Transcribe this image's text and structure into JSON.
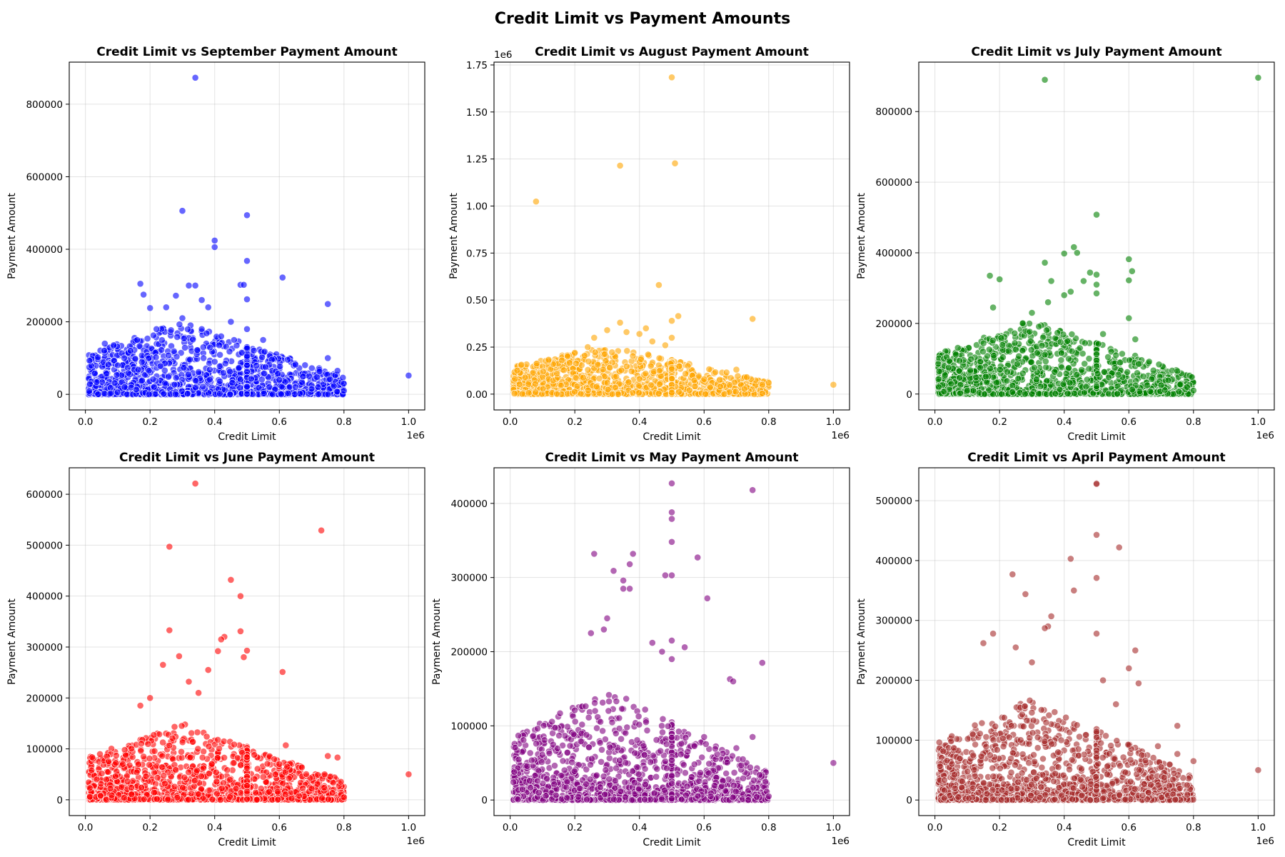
{
  "figure": {
    "title": "Credit Limit vs Payment Amounts"
  },
  "chart_data": [
    {
      "type": "scatter",
      "title": "Credit Limit vs September Payment Amount",
      "xlabel": "Credit Limit",
      "ylabel": "Payment Amount",
      "color": "#0000ff",
      "x_offset_label": "1e6",
      "y_offset_label": "",
      "xlim": [
        -50000,
        1050000
      ],
      "ylim": [
        -43000,
        916000
      ],
      "xticks": [
        0,
        200000,
        400000,
        600000,
        800000,
        1000000
      ],
      "xtick_labels": [
        "0.0",
        "0.2",
        "0.4",
        "0.6",
        "0.8",
        "1.0"
      ],
      "yticks": [
        0,
        200000,
        400000,
        600000,
        800000
      ],
      "ytick_labels": [
        "0",
        "200000",
        "400000",
        "600000",
        "800000"
      ],
      "grid": true,
      "points": [
        [
          340000,
          873000
        ],
        [
          300000,
          506000
        ],
        [
          500000,
          494000
        ],
        [
          400000,
          424000
        ],
        [
          400000,
          406000
        ],
        [
          500000,
          368000
        ],
        [
          610000,
          322000
        ],
        [
          170000,
          305000
        ],
        [
          320000,
          300000
        ],
        [
          340000,
          300000
        ],
        [
          480000,
          302000
        ],
        [
          490000,
          302000
        ],
        [
          500000,
          262000
        ],
        [
          750000,
          249000
        ],
        [
          1000000,
          52000
        ],
        [
          750000,
          100000
        ],
        [
          780000,
          65000
        ],
        [
          200000,
          238000
        ],
        [
          250000,
          240000
        ],
        [
          280000,
          272000
        ],
        [
          360000,
          260000
        ],
        [
          180000,
          275000
        ],
        [
          380000,
          240000
        ],
        [
          450000,
          200000
        ],
        [
          550000,
          150000
        ],
        [
          500000,
          180000
        ],
        [
          460000,
          150000
        ],
        [
          420000,
          160000
        ],
        [
          360000,
          180000
        ],
        [
          300000,
          210000
        ],
        [
          220000,
          180000
        ],
        [
          160000,
          150000
        ],
        [
          140000,
          120000
        ],
        [
          120000,
          100000
        ],
        [
          100000,
          80000
        ],
        [
          60000,
          140000
        ],
        [
          400000,
          90000
        ],
        [
          500000,
          80000
        ],
        [
          600000,
          40000
        ],
        [
          650000,
          20000
        ],
        [
          700000,
          15000
        ],
        [
          800000,
          10000
        ],
        [
          720000,
          20000
        ]
      ],
      "cloud": {
        "xmin": 10000,
        "xmax": 800000,
        "peak": 500000,
        "ymax": 200000,
        "n": 1400
      }
    },
    {
      "type": "scatter",
      "title": "Credit Limit vs August Payment Amount",
      "xlabel": "Credit Limit",
      "ylabel": "Payment Amount",
      "color": "#ffa500",
      "x_offset_label": "1e6",
      "y_offset_label": "1e6",
      "xlim": [
        -50000,
        1050000
      ],
      "ylim": [
        -84000,
        1765000
      ],
      "xticks": [
        0,
        200000,
        400000,
        600000,
        800000,
        1000000
      ],
      "xtick_labels": [
        "0.0",
        "0.2",
        "0.4",
        "0.6",
        "0.8",
        "1.0"
      ],
      "yticks": [
        0,
        250000,
        500000,
        750000,
        1000000,
        1250000,
        1500000,
        1750000
      ],
      "ytick_labels": [
        "0.00",
        "0.25",
        "0.50",
        "0.75",
        "1.00",
        "1.25",
        "1.50",
        "1.75"
      ],
      "grid": true,
      "points": [
        [
          500000,
          1684000
        ],
        [
          510000,
          1227000
        ],
        [
          340000,
          1215000
        ],
        [
          80000,
          1024000
        ],
        [
          460000,
          580000
        ],
        [
          750000,
          400000
        ],
        [
          1000000,
          50000
        ],
        [
          520000,
          415000
        ],
        [
          500000,
          390000
        ],
        [
          340000,
          380000
        ],
        [
          420000,
          350000
        ],
        [
          400000,
          320000
        ],
        [
          500000,
          300000
        ],
        [
          300000,
          340000
        ],
        [
          260000,
          300000
        ],
        [
          360000,
          330000
        ],
        [
          440000,
          280000
        ],
        [
          480000,
          260000
        ],
        [
          200000,
          220000
        ],
        [
          240000,
          250000
        ],
        [
          160000,
          180000
        ],
        [
          550000,
          150000
        ],
        [
          600000,
          80000
        ],
        [
          700000,
          130000
        ],
        [
          780000,
          50000
        ],
        [
          800000,
          60000
        ],
        [
          650000,
          40000
        ]
      ],
      "cloud": {
        "xmin": 10000,
        "xmax": 800000,
        "peak": 500000,
        "ymax": 260000,
        "n": 1400
      }
    },
    {
      "type": "scatter",
      "title": "Credit Limit vs July Payment Amount",
      "xlabel": "Credit Limit",
      "ylabel": "Payment Amount",
      "color": "#008000",
      "x_offset_label": "1e6",
      "y_offset_label": "",
      "xlim": [
        -50000,
        1050000
      ],
      "ylim": [
        -45000,
        940000
      ],
      "xticks": [
        0,
        200000,
        400000,
        600000,
        800000,
        1000000
      ],
      "xtick_labels": [
        "0.0",
        "0.2",
        "0.4",
        "0.6",
        "0.8",
        "1.0"
      ],
      "yticks": [
        0,
        200000,
        400000,
        600000,
        800000
      ],
      "ytick_labels": [
        "0",
        "200000",
        "400000",
        "600000",
        "800000"
      ],
      "grid": true,
      "points": [
        [
          340000,
          890000
        ],
        [
          1000000,
          896000
        ],
        [
          500000,
          508000
        ],
        [
          430000,
          416000
        ],
        [
          440000,
          400000
        ],
        [
          400000,
          398000
        ],
        [
          600000,
          382000
        ],
        [
          340000,
          372000
        ],
        [
          610000,
          348000
        ],
        [
          480000,
          344000
        ],
        [
          500000,
          338000
        ],
        [
          170000,
          335000
        ],
        [
          200000,
          325000
        ],
        [
          600000,
          322000
        ],
        [
          360000,
          320000
        ],
        [
          460000,
          320000
        ],
        [
          500000,
          310000
        ],
        [
          420000,
          290000
        ],
        [
          500000,
          285000
        ],
        [
          400000,
          280000
        ],
        [
          350000,
          260000
        ],
        [
          300000,
          230000
        ],
        [
          180000,
          245000
        ],
        [
          600000,
          215000
        ],
        [
          620000,
          155000
        ],
        [
          630000,
          85000
        ],
        [
          750000,
          65000
        ],
        [
          560000,
          110000
        ],
        [
          520000,
          170000
        ],
        [
          700000,
          25000
        ],
        [
          800000,
          10000
        ],
        [
          780000,
          20000
        ]
      ],
      "cloud": {
        "xmin": 10000,
        "xmax": 800000,
        "peak": 500000,
        "ymax": 210000,
        "n": 1400
      }
    },
    {
      "type": "scatter",
      "title": "Credit Limit vs June Payment Amount",
      "xlabel": "Credit Limit",
      "ylabel": "Payment Amount",
      "color": "#ff0000",
      "x_offset_label": "1e6",
      "y_offset_label": "",
      "xlim": [
        -50000,
        1050000
      ],
      "ylim": [
        -31000,
        652000
      ],
      "xticks": [
        0,
        200000,
        400000,
        600000,
        800000,
        1000000
      ],
      "xtick_labels": [
        "0.0",
        "0.2",
        "0.4",
        "0.6",
        "0.8",
        "1.0"
      ],
      "yticks": [
        0,
        100000,
        200000,
        300000,
        400000,
        500000,
        600000
      ],
      "ytick_labels": [
        "0",
        "100000",
        "200000",
        "300000",
        "400000",
        "500000",
        "600000"
      ],
      "grid": true,
      "points": [
        [
          340000,
          621000
        ],
        [
          730000,
          529000
        ],
        [
          260000,
          497000
        ],
        [
          450000,
          432000
        ],
        [
          480000,
          400000
        ],
        [
          260000,
          333000
        ],
        [
          480000,
          331000
        ],
        [
          430000,
          320000
        ],
        [
          420000,
          315000
        ],
        [
          500000,
          293000
        ],
        [
          490000,
          280000
        ],
        [
          410000,
          292000
        ],
        [
          290000,
          282000
        ],
        [
          380000,
          255000
        ],
        [
          240000,
          265000
        ],
        [
          610000,
          251000
        ],
        [
          320000,
          232000
        ],
        [
          350000,
          210000
        ],
        [
          200000,
          200000
        ],
        [
          170000,
          185000
        ],
        [
          1000000,
          50000
        ],
        [
          750000,
          86000
        ],
        [
          780000,
          83000
        ],
        [
          620000,
          107000
        ],
        [
          600000,
          70000
        ],
        [
          550000,
          45000
        ],
        [
          700000,
          22000
        ],
        [
          800000,
          5000
        ],
        [
          740000,
          50000
        ]
      ],
      "cloud": {
        "xmin": 10000,
        "xmax": 800000,
        "peak": 500000,
        "ymax": 150000,
        "n": 1400
      }
    },
    {
      "type": "scatter",
      "title": "Credit Limit vs May Payment Amount",
      "xlabel": "Credit Limit",
      "ylabel": "Payment Amount",
      "color": "#800080",
      "x_offset_label": "1e6",
      "y_offset_label": "",
      "xlim": [
        -50000,
        1050000
      ],
      "ylim": [
        -21000,
        448000
      ],
      "xticks": [
        0,
        200000,
        400000,
        600000,
        800000,
        1000000
      ],
      "xtick_labels": [
        "0.0",
        "0.2",
        "0.4",
        "0.6",
        "0.8",
        "1.0"
      ],
      "yticks": [
        0,
        100000,
        200000,
        300000,
        400000
      ],
      "ytick_labels": [
        "0",
        "100000",
        "200000",
        "300000",
        "400000"
      ],
      "grid": true,
      "points": [
        [
          500000,
          427000
        ],
        [
          750000,
          418000
        ],
        [
          500000,
          388000
        ],
        [
          500000,
          379000
        ],
        [
          500000,
          348000
        ],
        [
          260000,
          332000
        ],
        [
          380000,
          332000
        ],
        [
          580000,
          327000
        ],
        [
          370000,
          318000
        ],
        [
          320000,
          309000
        ],
        [
          500000,
          303000
        ],
        [
          480000,
          303000
        ],
        [
          350000,
          296000
        ],
        [
          350000,
          285000
        ],
        [
          370000,
          285000
        ],
        [
          610000,
          272000
        ],
        [
          300000,
          245000
        ],
        [
          250000,
          225000
        ],
        [
          290000,
          230000
        ],
        [
          440000,
          212000
        ],
        [
          500000,
          215000
        ],
        [
          540000,
          206000
        ],
        [
          470000,
          200000
        ],
        [
          500000,
          190000
        ],
        [
          1000000,
          50000
        ],
        [
          780000,
          185000
        ],
        [
          680000,
          163000
        ],
        [
          690000,
          160000
        ],
        [
          750000,
          85000
        ],
        [
          600000,
          85000
        ],
        [
          700000,
          70000
        ],
        [
          720000,
          55000
        ],
        [
          800000,
          5000
        ]
      ],
      "cloud": {
        "xmin": 10000,
        "xmax": 800000,
        "peak": 500000,
        "ymax": 150000,
        "n": 1400
      }
    },
    {
      "type": "scatter",
      "title": "Credit Limit vs April Payment Amount",
      "xlabel": "Credit Limit",
      "ylabel": "Payment Amount",
      "color": "#a52a2a",
      "x_offset_label": "1e6",
      "y_offset_label": "",
      "xlim": [
        -50000,
        1050000
      ],
      "ylim": [
        -26000,
        555000
      ],
      "xticks": [
        0,
        200000,
        400000,
        600000,
        800000,
        1000000
      ],
      "xtick_labels": [
        "0.0",
        "0.2",
        "0.4",
        "0.6",
        "0.8",
        "1.0"
      ],
      "yticks": [
        0,
        100000,
        200000,
        300000,
        400000,
        500000
      ],
      "ytick_labels": [
        "0",
        "100000",
        "200000",
        "300000",
        "400000",
        "500000"
      ],
      "grid": true,
      "points": [
        [
          500000,
          529000
        ],
        [
          500000,
          528000
        ],
        [
          500000,
          443000
        ],
        [
          570000,
          422000
        ],
        [
          420000,
          403000
        ],
        [
          240000,
          377000
        ],
        [
          430000,
          350000
        ],
        [
          500000,
          371000
        ],
        [
          280000,
          344000
        ],
        [
          360000,
          307000
        ],
        [
          350000,
          290000
        ],
        [
          340000,
          287000
        ],
        [
          500000,
          278000
        ],
        [
          620000,
          250000
        ],
        [
          630000,
          195000
        ],
        [
          600000,
          220000
        ],
        [
          250000,
          255000
        ],
        [
          300000,
          230000
        ],
        [
          180000,
          278000
        ],
        [
          150000,
          262000
        ],
        [
          1000000,
          50000
        ],
        [
          750000,
          124000
        ],
        [
          690000,
          90000
        ],
        [
          750000,
          77000
        ],
        [
          800000,
          65000
        ],
        [
          700000,
          55000
        ],
        [
          780000,
          25000
        ],
        [
          640000,
          75000
        ],
        [
          560000,
          160000
        ],
        [
          520000,
          200000
        ]
      ],
      "cloud": {
        "xmin": 10000,
        "xmax": 800000,
        "peak": 500000,
        "ymax": 170000,
        "n": 1400
      }
    }
  ]
}
